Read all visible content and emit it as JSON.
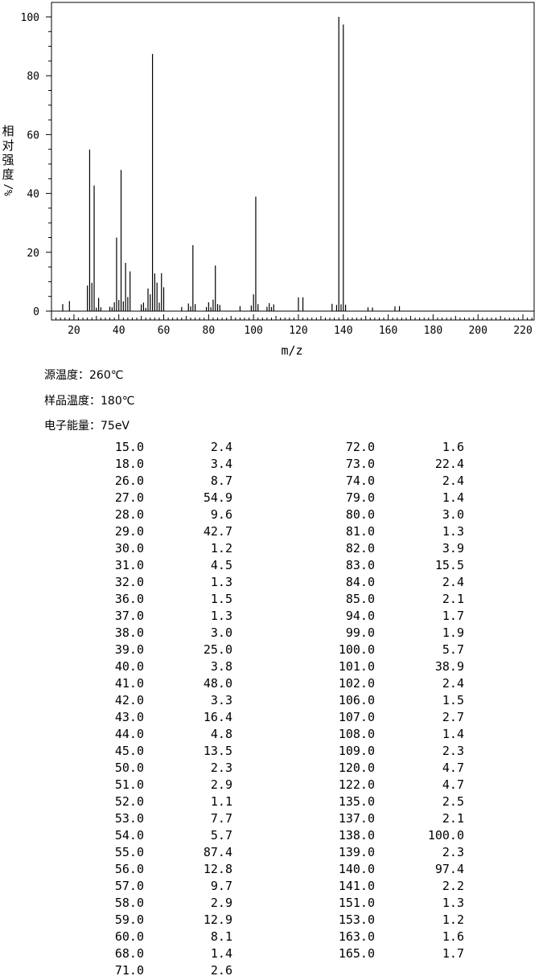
{
  "chart_data": {
    "type": "bar",
    "xlabel": "m/z",
    "ylabel": "相对强度 %/",
    "xlim": [
      10,
      225
    ],
    "ylim": [
      0,
      105
    ],
    "x_ticks": [
      20,
      40,
      60,
      80,
      100,
      120,
      140,
      160,
      180,
      200,
      220
    ],
    "y_ticks": [
      0,
      20,
      40,
      60,
      80,
      100
    ],
    "grid": false,
    "peaks": [
      {
        "mz": 15.0,
        "intensity": 2.4
      },
      {
        "mz": 18.0,
        "intensity": 3.4
      },
      {
        "mz": 26.0,
        "intensity": 8.7
      },
      {
        "mz": 27.0,
        "intensity": 54.9
      },
      {
        "mz": 28.0,
        "intensity": 9.6
      },
      {
        "mz": 29.0,
        "intensity": 42.7
      },
      {
        "mz": 30.0,
        "intensity": 1.2
      },
      {
        "mz": 31.0,
        "intensity": 4.5
      },
      {
        "mz": 32.0,
        "intensity": 1.3
      },
      {
        "mz": 36.0,
        "intensity": 1.5
      },
      {
        "mz": 37.0,
        "intensity": 1.3
      },
      {
        "mz": 38.0,
        "intensity": 3.0
      },
      {
        "mz": 39.0,
        "intensity": 25.0
      },
      {
        "mz": 40.0,
        "intensity": 3.8
      },
      {
        "mz": 41.0,
        "intensity": 48.0
      },
      {
        "mz": 42.0,
        "intensity": 3.3
      },
      {
        "mz": 43.0,
        "intensity": 16.4
      },
      {
        "mz": 44.0,
        "intensity": 4.8
      },
      {
        "mz": 45.0,
        "intensity": 13.5
      },
      {
        "mz": 50.0,
        "intensity": 2.3
      },
      {
        "mz": 51.0,
        "intensity": 2.9
      },
      {
        "mz": 52.0,
        "intensity": 1.1
      },
      {
        "mz": 53.0,
        "intensity": 7.7
      },
      {
        "mz": 54.0,
        "intensity": 5.7
      },
      {
        "mz": 55.0,
        "intensity": 87.4
      },
      {
        "mz": 56.0,
        "intensity": 12.8
      },
      {
        "mz": 57.0,
        "intensity": 9.7
      },
      {
        "mz": 58.0,
        "intensity": 2.9
      },
      {
        "mz": 59.0,
        "intensity": 12.9
      },
      {
        "mz": 60.0,
        "intensity": 8.1
      },
      {
        "mz": 68.0,
        "intensity": 1.4
      },
      {
        "mz": 71.0,
        "intensity": 2.6
      },
      {
        "mz": 72.0,
        "intensity": 1.6
      },
      {
        "mz": 73.0,
        "intensity": 22.4
      },
      {
        "mz": 74.0,
        "intensity": 2.4
      },
      {
        "mz": 79.0,
        "intensity": 1.4
      },
      {
        "mz": 80.0,
        "intensity": 3.0
      },
      {
        "mz": 81.0,
        "intensity": 1.3
      },
      {
        "mz": 82.0,
        "intensity": 3.9
      },
      {
        "mz": 83.0,
        "intensity": 15.5
      },
      {
        "mz": 84.0,
        "intensity": 2.4
      },
      {
        "mz": 85.0,
        "intensity": 2.1
      },
      {
        "mz": 94.0,
        "intensity": 1.7
      },
      {
        "mz": 99.0,
        "intensity": 1.9
      },
      {
        "mz": 100.0,
        "intensity": 5.7
      },
      {
        "mz": 101.0,
        "intensity": 38.9
      },
      {
        "mz": 102.0,
        "intensity": 2.4
      },
      {
        "mz": 106.0,
        "intensity": 1.5
      },
      {
        "mz": 107.0,
        "intensity": 2.7
      },
      {
        "mz": 108.0,
        "intensity": 1.4
      },
      {
        "mz": 109.0,
        "intensity": 2.3
      },
      {
        "mz": 120.0,
        "intensity": 4.7
      },
      {
        "mz": 122.0,
        "intensity": 4.7
      },
      {
        "mz": 135.0,
        "intensity": 2.5
      },
      {
        "mz": 137.0,
        "intensity": 2.1
      },
      {
        "mz": 138.0,
        "intensity": 100.0
      },
      {
        "mz": 139.0,
        "intensity": 2.3
      },
      {
        "mz": 140.0,
        "intensity": 97.4
      },
      {
        "mz": 141.0,
        "intensity": 2.2
      },
      {
        "mz": 151.0,
        "intensity": 1.3
      },
      {
        "mz": 153.0,
        "intensity": 1.2
      },
      {
        "mz": 163.0,
        "intensity": 1.6
      },
      {
        "mz": 165.0,
        "intensity": 1.7
      }
    ]
  },
  "conditions": {
    "source_temp": "源温度：260℃",
    "sample_temp": "样品温度：180℃",
    "electron_energy": "电子能量：75eV"
  },
  "table": {
    "left": [
      [
        "15.0",
        "2.4"
      ],
      [
        "18.0",
        "3.4"
      ],
      [
        "26.0",
        "8.7"
      ],
      [
        "27.0",
        "54.9"
      ],
      [
        "28.0",
        "9.6"
      ],
      [
        "29.0",
        "42.7"
      ],
      [
        "30.0",
        "1.2"
      ],
      [
        "31.0",
        "4.5"
      ],
      [
        "32.0",
        "1.3"
      ],
      [
        "36.0",
        "1.5"
      ],
      [
        "37.0",
        "1.3"
      ],
      [
        "38.0",
        "3.0"
      ],
      [
        "39.0",
        "25.0"
      ],
      [
        "40.0",
        "3.8"
      ],
      [
        "41.0",
        "48.0"
      ],
      [
        "42.0",
        "3.3"
      ],
      [
        "43.0",
        "16.4"
      ],
      [
        "44.0",
        "4.8"
      ],
      [
        "45.0",
        "13.5"
      ],
      [
        "50.0",
        "2.3"
      ],
      [
        "51.0",
        "2.9"
      ],
      [
        "52.0",
        "1.1"
      ],
      [
        "53.0",
        "7.7"
      ],
      [
        "54.0",
        "5.7"
      ],
      [
        "55.0",
        "87.4"
      ],
      [
        "56.0",
        "12.8"
      ],
      [
        "57.0",
        "9.7"
      ],
      [
        "58.0",
        "2.9"
      ],
      [
        "59.0",
        "12.9"
      ],
      [
        "60.0",
        "8.1"
      ],
      [
        "68.0",
        "1.4"
      ],
      [
        "71.0",
        "2.6"
      ]
    ],
    "right": [
      [
        "72.0",
        "1.6"
      ],
      [
        "73.0",
        "22.4"
      ],
      [
        "74.0",
        "2.4"
      ],
      [
        "79.0",
        "1.4"
      ],
      [
        "80.0",
        "3.0"
      ],
      [
        "81.0",
        "1.3"
      ],
      [
        "82.0",
        "3.9"
      ],
      [
        "83.0",
        "15.5"
      ],
      [
        "84.0",
        "2.4"
      ],
      [
        "85.0",
        "2.1"
      ],
      [
        "94.0",
        "1.7"
      ],
      [
        "99.0",
        "1.9"
      ],
      [
        "100.0",
        "5.7"
      ],
      [
        "101.0",
        "38.9"
      ],
      [
        "102.0",
        "2.4"
      ],
      [
        "106.0",
        "1.5"
      ],
      [
        "107.0",
        "2.7"
      ],
      [
        "108.0",
        "1.4"
      ],
      [
        "109.0",
        "2.3"
      ],
      [
        "120.0",
        "4.7"
      ],
      [
        "122.0",
        "4.7"
      ],
      [
        "135.0",
        "2.5"
      ],
      [
        "137.0",
        "2.1"
      ],
      [
        "138.0",
        "100.0"
      ],
      [
        "139.0",
        "2.3"
      ],
      [
        "140.0",
        "97.4"
      ],
      [
        "141.0",
        "2.2"
      ],
      [
        "151.0",
        "1.3"
      ],
      [
        "153.0",
        "1.2"
      ],
      [
        "163.0",
        "1.6"
      ],
      [
        "165.0",
        "1.7"
      ]
    ]
  }
}
